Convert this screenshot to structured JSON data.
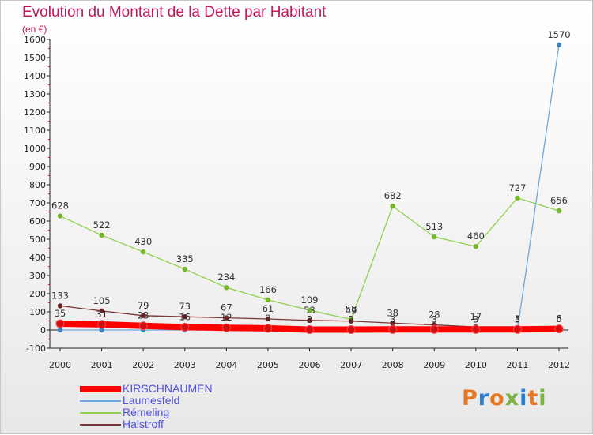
{
  "title": "Evolution du Montant de la Dette par Habitant",
  "subtitle": "(en €)",
  "logo": {
    "letters": [
      "P",
      "r",
      "o",
      "x",
      "i",
      "t",
      "i"
    ],
    "colors": [
      "#e87722",
      "#2a7fd4",
      "#e87722",
      "#7cb342",
      "#2a7fd4",
      "#e87722",
      "#7cb342"
    ]
  },
  "chart_data": {
    "type": "line",
    "title": "Evolution du Montant de la Dette par Habitant",
    "ylabel": "(en €)",
    "xlabel": "",
    "x": [
      "2000",
      "2001",
      "2002",
      "2003",
      "2004",
      "2005",
      "2006",
      "2007",
      "2008",
      "2009",
      "2010",
      "2011",
      "2012"
    ],
    "ylim": [
      -100,
      1600
    ],
    "yticks": [
      -100,
      0,
      100,
      200,
      300,
      400,
      500,
      600,
      700,
      800,
      900,
      1000,
      1100,
      1200,
      1300,
      1400,
      1500,
      1600
    ],
    "grid": false,
    "legend": "bottom-left",
    "series": [
      {
        "name": "KIRSCHNAUMEN",
        "color": "#ff0000",
        "point_color": "#d01010",
        "values": [
          35,
          31,
          23,
          16,
          12,
          9,
          2,
          2,
          3,
          3,
          3,
          3,
          6
        ],
        "labels": [
          "35",
          "31",
          "23",
          "16",
          "12",
          "9",
          "2",
          "2",
          "3",
          "3",
          "3",
          "3",
          "6"
        ]
      },
      {
        "name": "Laumesfeld",
        "color": "#6fa8dc",
        "point_color": "#3d85c6",
        "values": [
          0,
          0,
          0,
          0,
          0,
          0,
          0,
          0,
          0,
          0,
          0,
          0,
          1570
        ],
        "labels": [
          "",
          "",
          "",
          "",
          "",
          "",
          "",
          "",
          "",
          "",
          "",
          "",
          "1570"
        ]
      },
      {
        "name": "Rémeling",
        "color": "#93d050",
        "point_color": "#76b82a",
        "values": [
          628,
          522,
          430,
          335,
          234,
          166,
          109,
          58,
          682,
          513,
          460,
          727,
          656
        ],
        "labels": [
          "628",
          "522",
          "430",
          "335",
          "234",
          "166",
          "109",
          "58",
          "682",
          "513",
          "460",
          "727",
          "656"
        ]
      },
      {
        "name": "Halstroff",
        "color": "#7b3535",
        "point_color": "#6b1f1f",
        "values": [
          133,
          105,
          79,
          73,
          67,
          61,
          53,
          49,
          38,
          28,
          17,
          5,
          5
        ],
        "labels": [
          "133",
          "105",
          "79",
          "73",
          "67",
          "61",
          "53",
          "49",
          "38",
          "28",
          "17",
          "5",
          "5"
        ]
      }
    ]
  }
}
